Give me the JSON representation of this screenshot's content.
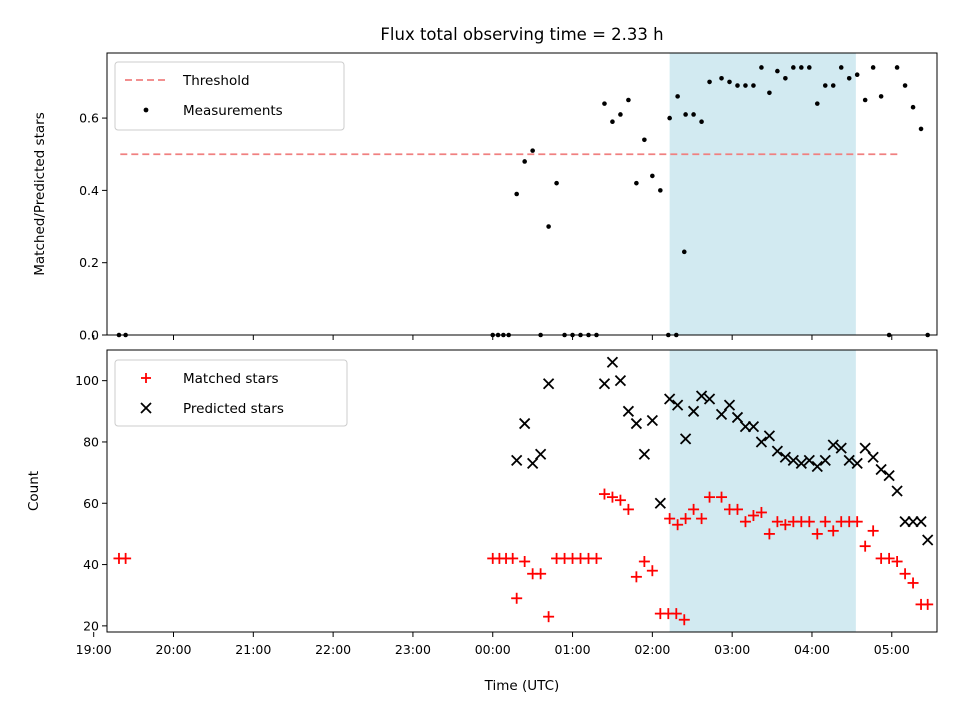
{
  "title": "Flux total observing time = 2.33 h",
  "xlabel": "Time (UTC)",
  "x_tick_labels": [
    "19:00",
    "20:00",
    "21:00",
    "22:00",
    "23:00",
    "00:00",
    "01:00",
    "02:00",
    "03:00",
    "04:00",
    "05:00"
  ],
  "colors": {
    "threshold": "#f08080",
    "measurements": "#000000",
    "matched": "#ff0000",
    "predicted": "#000000",
    "highlight": "#add8e6"
  },
  "chart_data": [
    {
      "type": "scatter",
      "ylabel": "Matched/Predicted stars",
      "xlim": [
        "19:10",
        "05:34"
      ],
      "ylim": [
        0,
        0.78
      ],
      "yticks": [
        0.0,
        0.2,
        0.4,
        0.6
      ],
      "ytick_labels": [
        "0.0",
        "0.2",
        "0.4",
        "0.6"
      ],
      "legend_position": "top-left",
      "shaded_interval": [
        "02:13",
        "04:33"
      ],
      "threshold": {
        "name": "Threshold",
        "value": 0.5,
        "x_range": [
          "19:20",
          "05:05"
        ]
      },
      "series": [
        {
          "name": "Measurements",
          "marker": "dot",
          "points": [
            [
              "19:19",
              0
            ],
            [
              "19:24",
              0
            ],
            [
              "00:00",
              0
            ],
            [
              "00:04",
              0
            ],
            [
              "00:08",
              0
            ],
            [
              "00:12",
              0
            ],
            [
              "00:18",
              0.39
            ],
            [
              "00:24",
              0.48
            ],
            [
              "00:30",
              0.51
            ],
            [
              "00:36",
              0
            ],
            [
              "00:42",
              0.3
            ],
            [
              "00:48",
              0.42
            ],
            [
              "00:54",
              0
            ],
            [
              "01:00",
              0
            ],
            [
              "01:06",
              0
            ],
            [
              "01:12",
              0
            ],
            [
              "01:18",
              0
            ],
            [
              "01:24",
              0.64
            ],
            [
              "01:30",
              0.59
            ],
            [
              "01:36",
              0.61
            ],
            [
              "01:42",
              0.65
            ],
            [
              "01:48",
              0.42
            ],
            [
              "01:54",
              0.54
            ],
            [
              "02:00",
              0.44
            ],
            [
              "02:06",
              0.4
            ],
            [
              "02:12",
              0
            ],
            [
              "02:18",
              0
            ],
            [
              "02:24",
              0.23
            ],
            [
              "02:13",
              0.6
            ],
            [
              "02:19",
              0.66
            ],
            [
              "02:25",
              0.61
            ],
            [
              "02:31",
              0.61
            ],
            [
              "02:37",
              0.59
            ],
            [
              "02:43",
              0.7
            ],
            [
              "02:52",
              0.71
            ],
            [
              "02:58",
              0.7
            ],
            [
              "03:04",
              0.69
            ],
            [
              "03:10",
              0.69
            ],
            [
              "03:16",
              0.69
            ],
            [
              "03:22",
              0.74
            ],
            [
              "03:28",
              0.67
            ],
            [
              "03:34",
              0.73
            ],
            [
              "03:40",
              0.71
            ],
            [
              "03:46",
              0.74
            ],
            [
              "03:52",
              0.74
            ],
            [
              "03:58",
              0.74
            ],
            [
              "04:04",
              0.64
            ],
            [
              "04:10",
              0.69
            ],
            [
              "04:16",
              0.69
            ],
            [
              "04:22",
              0.74
            ],
            [
              "04:28",
              0.71
            ],
            [
              "04:34",
              0.72
            ],
            [
              "04:40",
              0.65
            ],
            [
              "04:46",
              0.74
            ],
            [
              "04:52",
              0.66
            ],
            [
              "04:58",
              0
            ],
            [
              "05:04",
              0.74
            ],
            [
              "05:10",
              0.69
            ],
            [
              "05:16",
              0.63
            ],
            [
              "05:22",
              0.57
            ],
            [
              "05:27",
              0
            ]
          ]
        }
      ]
    },
    {
      "type": "scatter",
      "ylabel": "Count",
      "xlim": [
        "19:10",
        "05:34"
      ],
      "ylim": [
        18,
        110
      ],
      "yticks": [
        20,
        40,
        60,
        80,
        100
      ],
      "ytick_labels": [
        "20",
        "40",
        "60",
        "80",
        "100"
      ],
      "legend_position": "top-left",
      "shaded_interval": [
        "02:13",
        "04:33"
      ],
      "series": [
        {
          "name": "Matched stars",
          "marker": "plus",
          "points": [
            [
              "19:19",
              42
            ],
            [
              "19:24",
              42
            ],
            [
              "00:00",
              42
            ],
            [
              "00:05",
              42
            ],
            [
              "00:10",
              42
            ],
            [
              "00:15",
              42
            ],
            [
              "00:18",
              29
            ],
            [
              "00:24",
              41
            ],
            [
              "00:30",
              37
            ],
            [
              "00:36",
              37
            ],
            [
              "00:42",
              23
            ],
            [
              "00:48",
              42
            ],
            [
              "00:54",
              42
            ],
            [
              "01:00",
              42
            ],
            [
              "01:06",
              42
            ],
            [
              "01:12",
              42
            ],
            [
              "01:18",
              42
            ],
            [
              "01:24",
              63
            ],
            [
              "01:30",
              62
            ],
            [
              "01:36",
              61
            ],
            [
              "01:42",
              58
            ],
            [
              "01:48",
              36
            ],
            [
              "01:54",
              41
            ],
            [
              "02:00",
              38
            ],
            [
              "02:06",
              24
            ],
            [
              "02:12",
              24
            ],
            [
              "02:18",
              24
            ],
            [
              "02:24",
              22
            ],
            [
              "02:13",
              55
            ],
            [
              "02:19",
              53
            ],
            [
              "02:25",
              55
            ],
            [
              "02:31",
              58
            ],
            [
              "02:37",
              55
            ],
            [
              "02:43",
              62
            ],
            [
              "02:52",
              62
            ],
            [
              "02:58",
              58
            ],
            [
              "03:04",
              58
            ],
            [
              "03:10",
              54
            ],
            [
              "03:16",
              56
            ],
            [
              "03:22",
              57
            ],
            [
              "03:28",
              50
            ],
            [
              "03:34",
              54
            ],
            [
              "03:40",
              53
            ],
            [
              "03:46",
              54
            ],
            [
              "03:52",
              54
            ],
            [
              "03:58",
              54
            ],
            [
              "04:04",
              50
            ],
            [
              "04:10",
              54
            ],
            [
              "04:16",
              51
            ],
            [
              "04:22",
              54
            ],
            [
              "04:28",
              54
            ],
            [
              "04:34",
              54
            ],
            [
              "04:40",
              46
            ],
            [
              "04:46",
              51
            ],
            [
              "04:52",
              42
            ],
            [
              "04:58",
              42
            ],
            [
              "05:04",
              41
            ],
            [
              "05:10",
              37
            ],
            [
              "05:16",
              34
            ],
            [
              "05:22",
              27
            ],
            [
              "05:27",
              27
            ]
          ]
        },
        {
          "name": "Predicted stars",
          "marker": "x",
          "points": [
            [
              "00:18",
              74
            ],
            [
              "00:24",
              86
            ],
            [
              "00:30",
              73
            ],
            [
              "00:36",
              76
            ],
            [
              "00:42",
              99
            ],
            [
              "01:24",
              99
            ],
            [
              "01:30",
              106
            ],
            [
              "01:36",
              100
            ],
            [
              "01:42",
              90
            ],
            [
              "01:48",
              86
            ],
            [
              "01:54",
              76
            ],
            [
              "02:00",
              87
            ],
            [
              "02:06",
              60
            ],
            [
              "02:13",
              94
            ],
            [
              "02:19",
              92
            ],
            [
              "02:25",
              81
            ],
            [
              "02:31",
              90
            ],
            [
              "02:37",
              95
            ],
            [
              "02:43",
              94
            ],
            [
              "02:52",
              89
            ],
            [
              "02:58",
              92
            ],
            [
              "03:04",
              88
            ],
            [
              "03:10",
              85
            ],
            [
              "03:16",
              85
            ],
            [
              "03:22",
              80
            ],
            [
              "03:28",
              82
            ],
            [
              "03:34",
              77
            ],
            [
              "03:40",
              75
            ],
            [
              "03:46",
              74
            ],
            [
              "03:52",
              73
            ],
            [
              "03:58",
              74
            ],
            [
              "04:04",
              72
            ],
            [
              "04:10",
              74
            ],
            [
              "04:16",
              79
            ],
            [
              "04:22",
              78
            ],
            [
              "04:28",
              74
            ],
            [
              "04:34",
              73
            ],
            [
              "04:40",
              78
            ],
            [
              "04:46",
              75
            ],
            [
              "04:52",
              71
            ],
            [
              "04:58",
              69
            ],
            [
              "05:04",
              64
            ],
            [
              "05:10",
              54
            ],
            [
              "05:16",
              54
            ],
            [
              "05:22",
              54
            ],
            [
              "05:27",
              48
            ]
          ]
        }
      ]
    }
  ]
}
